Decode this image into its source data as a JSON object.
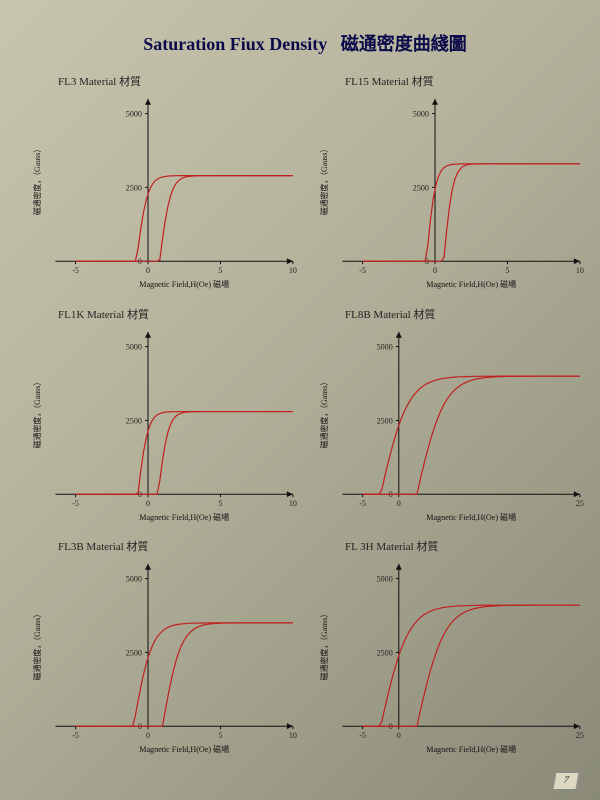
{
  "page": {
    "title_en": "Saturation Fiux Density",
    "title_cjk": "磁通密度曲綫圖",
    "page_number": "7",
    "background": "#b5b39c",
    "curve_color": "#c02020",
    "axis_color": "#111111",
    "text_color": "#0a0a4a"
  },
  "common": {
    "ylabel": "磁通密度，（Gauss）",
    "xlabel": "Magnetic Field,H(Oe) 磁場",
    "title_suffix": "Material 材質"
  },
  "charts": [
    {
      "id": "FL3",
      "title_prefix": "FL3",
      "type": "hysteresis",
      "xlim": [
        -5,
        10
      ],
      "ylim": [
        0,
        5500
      ],
      "xticks": [
        -5,
        0,
        5,
        10
      ],
      "yticks": [
        0,
        2500,
        5000
      ],
      "saturation": 2900,
      "coercivity": 0.8,
      "knee": 1.2,
      "curve_color": "#c02020"
    },
    {
      "id": "FL15",
      "title_prefix": "FL15",
      "type": "hysteresis",
      "xlim": [
        -5,
        10
      ],
      "ylim": [
        0,
        5500
      ],
      "xticks": [
        -5,
        0,
        5,
        10
      ],
      "yticks": [
        0,
        2500,
        5000
      ],
      "saturation": 3300,
      "coercivity": 0.6,
      "knee": 1.0,
      "curve_color": "#c02020"
    },
    {
      "id": "FL1K",
      "title_prefix": "FL1K",
      "type": "hysteresis",
      "xlim": [
        -5,
        10
      ],
      "ylim": [
        0,
        5500
      ],
      "xticks": [
        -5,
        0,
        5,
        10
      ],
      "yticks": [
        0,
        2500,
        5000
      ],
      "saturation": 2800,
      "coercivity": 0.7,
      "knee": 1.1,
      "curve_color": "#c02020"
    },
    {
      "id": "FL8B",
      "title_prefix": "FL8B",
      "type": "hysteresis",
      "xlim": [
        -5,
        25
      ],
      "ylim": [
        0,
        5500
      ],
      "xticks": [
        -5,
        0,
        25
      ],
      "yticks": [
        0,
        2500,
        5000
      ],
      "saturation": 4000,
      "coercivity": 2.5,
      "knee": 6.0,
      "curve_color": "#c02020"
    },
    {
      "id": "FL3B",
      "title_prefix": "FL3B",
      "type": "hysteresis",
      "xlim": [
        -5,
        10
      ],
      "ylim": [
        0,
        5500
      ],
      "xticks": [
        -5,
        0,
        5,
        10
      ],
      "yticks": [
        0,
        2500,
        5000
      ],
      "saturation": 3500,
      "coercivity": 1.0,
      "knee": 2.0,
      "curve_color": "#c02020"
    },
    {
      "id": "FL3H",
      "title_prefix": "FL 3H",
      "type": "hysteresis",
      "xlim": [
        -5,
        25
      ],
      "ylim": [
        0,
        5500
      ],
      "xticks": [
        -5,
        0,
        25
      ],
      "yticks": [
        0,
        2500,
        5000
      ],
      "saturation": 4100,
      "coercivity": 2.5,
      "knee": 6.0,
      "curve_color": "#c02020"
    }
  ]
}
